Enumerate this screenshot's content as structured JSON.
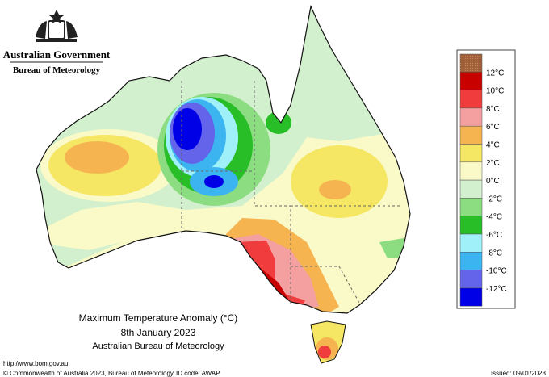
{
  "header": {
    "government": "Australian Government",
    "bureau": "Bureau of Meteorology"
  },
  "map": {
    "title": "Maximum Temperature Anomaly (°C)",
    "date": "8th January 2023",
    "source": "Australian Bureau of Meteorology"
  },
  "legend": {
    "labels": [
      "12°C",
      "10°C",
      "8°C",
      "6°C",
      "4°C",
      "2°C",
      "0°C",
      "-2°C",
      "-4°C",
      "-6°C",
      "-8°C",
      "-10°C",
      "-12°C"
    ],
    "colors": [
      "#a0603a",
      "#c80000",
      "#f03c3c",
      "#f5a0a0",
      "#f5b450",
      "#f5e664",
      "#fafac8",
      "#d2f0cd",
      "#8cdc82",
      "#28be28",
      "#a0f0fa",
      "#3cb4f0",
      "#6464eb",
      "#0000e6"
    ]
  },
  "footer": {
    "url": "http://www.bom.gov.au",
    "copyright": "© Commonwealth of Australia 2023, Bureau of Meteorology",
    "id_code": "ID code: AWAP",
    "issued": "Issued: 09/01/2023"
  }
}
